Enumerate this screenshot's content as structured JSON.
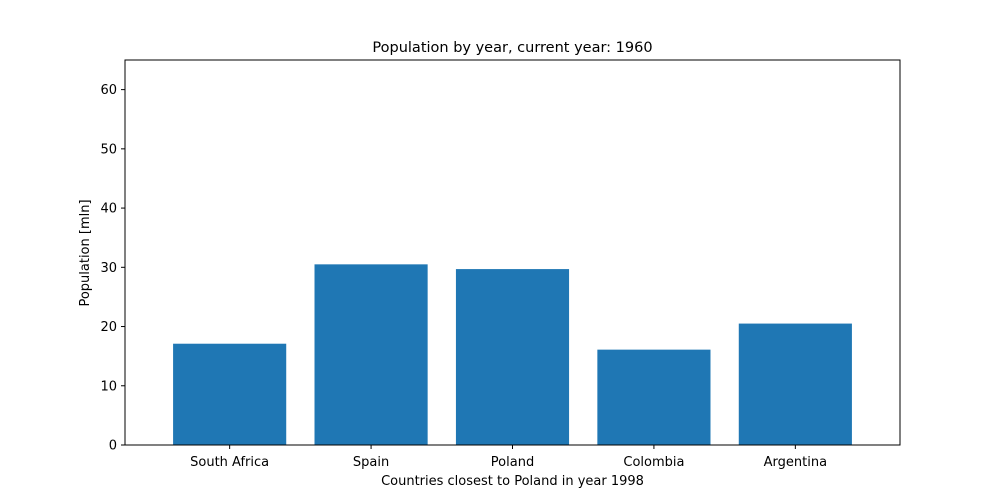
{
  "chart_data": {
    "type": "bar",
    "title": "Population by year, current year: 1960",
    "xlabel": "Countries closest to Poland in year 1998",
    "ylabel": "Population [mln]",
    "categories": [
      "South Africa",
      "Spain",
      "Poland",
      "Colombia",
      "Argentina"
    ],
    "values": [
      17.1,
      30.5,
      29.7,
      16.1,
      20.5
    ],
    "ylim": [
      0,
      65
    ],
    "yticks": [
      0,
      10,
      20,
      30,
      40,
      50,
      60
    ],
    "grid": false,
    "bar_color": "#1f77b4"
  }
}
